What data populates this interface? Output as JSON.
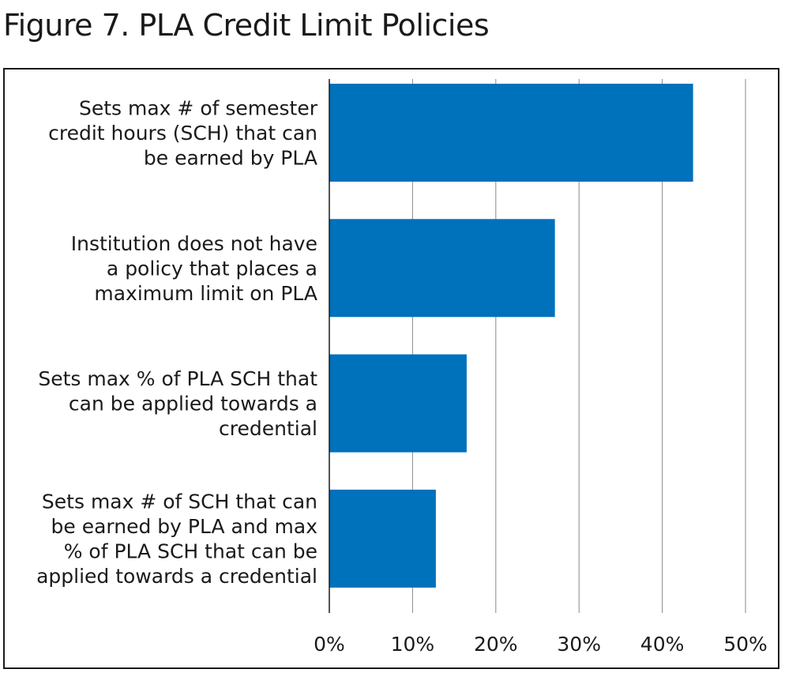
{
  "title": "Figure 7. PLA Credit Limit Policies",
  "colors": {
    "bar": "#0071BB",
    "grid": "#8a8a8a",
    "axis": "#1a1a1a",
    "text": "#1a1a1a"
  },
  "chart_data": {
    "type": "bar",
    "orientation": "horizontal",
    "title": "",
    "xlabel": "",
    "ylabel": "",
    "xlim": [
      0,
      50
    ],
    "grid": true,
    "legend": "none",
    "categories": [
      [
        "Sets max # of semester",
        "credit hours (SCH) that can",
        "be earned by PLA"
      ],
      [
        "Institution does not have",
        "a policy that places a",
        "maximum limit on PLA"
      ],
      [
        "Sets max % of PLA SCH that",
        "can be applied towards a",
        "credential"
      ],
      [
        "Sets max # of SCH that can",
        "be earned by PLA and max",
        "% of PLA SCH that can be",
        "applied towards a credential"
      ]
    ],
    "values": [
      43.7,
      27.1,
      16.5,
      12.8
    ],
    "ticks": [
      0,
      10,
      20,
      30,
      40,
      50
    ],
    "tick_labels": [
      "0%",
      "10%",
      "20%",
      "30%",
      "40%",
      "50%"
    ]
  }
}
